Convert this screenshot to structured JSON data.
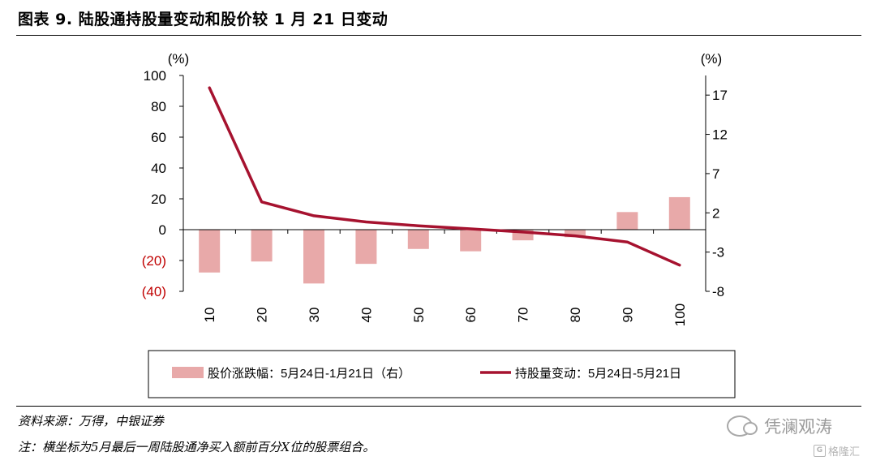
{
  "header": {
    "title": "图表 9. 陆股通持股量变动和股价较 1 月 21 日变动"
  },
  "chart_data": {
    "type": "bar+line",
    "categories": [
      "10",
      "20",
      "30",
      "40",
      "50",
      "60",
      "70",
      "80",
      "90",
      "100"
    ],
    "left_axis": {
      "unit": "(%)",
      "ylim": [
        -40,
        100
      ],
      "ticks": [
        100,
        80,
        60,
        40,
        20,
        0,
        -20,
        -40
      ],
      "tick_labels": [
        "100",
        "80",
        "60",
        "40",
        "20",
        "0",
        "(20)",
        "(40)"
      ]
    },
    "right_axis": {
      "unit": "(%)",
      "ylim": [
        -8,
        19.5
      ],
      "ticks": [
        17,
        12,
        7,
        2,
        -3,
        -8
      ],
      "tick_labels": [
        "17",
        "12",
        "7",
        "2",
        "-3",
        "-8"
      ]
    },
    "series": [
      {
        "name": "股价涨跌幅：5月24日-1月21日（右）",
        "type": "bar",
        "axis": "right",
        "color": "#e8a9a9",
        "values": [
          -5.6,
          -4.2,
          -7.0,
          -4.5,
          -2.6,
          -2.9,
          -1.5,
          -1.1,
          2.1,
          4.0
        ]
      },
      {
        "name": "持股量变动：5月24日-5月21日",
        "type": "line",
        "axis": "left",
        "color": "#a6122f",
        "values": [
          92,
          18,
          9,
          5,
          2.5,
          0.5,
          -1.5,
          -4,
          -8,
          -23
        ]
      }
    ],
    "grid": false,
    "legend_position": "bottom"
  },
  "footer": {
    "source": "资料来源：万得，中银证券",
    "note": "注：横坐标为5月最后一周陆股通净买入额前百分X位的股票组合。",
    "watermark": "凭澜观涛",
    "watermark2": "格隆汇",
    "watermark2_icon": "G"
  }
}
